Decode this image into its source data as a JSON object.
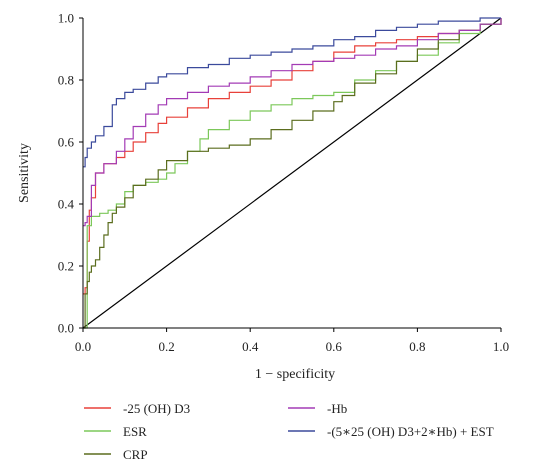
{
  "chart_data": {
    "type": "line",
    "xlabel": "1 − specificity",
    "ylabel": "Sensitivity",
    "xlim": [
      0.0,
      1.0
    ],
    "ylim": [
      0.0,
      1.0
    ],
    "x_ticks": [
      "0.0",
      "0.2",
      "0.4",
      "0.6",
      "0.8",
      "1.0"
    ],
    "y_ticks": [
      "0.0",
      "0.2",
      "0.4",
      "0.6",
      "0.8",
      "1.0"
    ],
    "grid": false,
    "legend_position": "bottom",
    "reference_line": {
      "x": [
        0,
        1
      ],
      "y": [
        0,
        1
      ],
      "color": "#000000"
    },
    "series": [
      {
        "name": "-25 (OH) D3",
        "color": "#e8413a",
        "x": [
          0,
          0.005,
          0.01,
          0.015,
          0.02,
          0.03,
          0.05,
          0.08,
          0.1,
          0.12,
          0.15,
          0.18,
          0.2,
          0.25,
          0.3,
          0.35,
          0.4,
          0.45,
          0.5,
          0.55,
          0.6,
          0.65,
          0.7,
          0.75,
          0.8,
          0.85,
          0.9,
          0.95,
          1.0
        ],
        "y": [
          0.11,
          0.13,
          0.28,
          0.38,
          0.42,
          0.5,
          0.53,
          0.55,
          0.57,
          0.6,
          0.63,
          0.66,
          0.68,
          0.71,
          0.74,
          0.76,
          0.78,
          0.8,
          0.83,
          0.86,
          0.89,
          0.91,
          0.92,
          0.93,
          0.94,
          0.95,
          0.96,
          0.98,
          1.0
        ]
      },
      {
        "name": "ESR",
        "color": "#7cc85a",
        "x": [
          0,
          0.01,
          0.02,
          0.04,
          0.06,
          0.08,
          0.1,
          0.12,
          0.15,
          0.18,
          0.2,
          0.22,
          0.25,
          0.28,
          0.3,
          0.35,
          0.4,
          0.45,
          0.5,
          0.55,
          0.6,
          0.65,
          0.7,
          0.75,
          0.8,
          0.85,
          0.9,
          0.95,
          1.0
        ],
        "y": [
          0.0,
          0.33,
          0.36,
          0.37,
          0.38,
          0.4,
          0.44,
          0.46,
          0.47,
          0.48,
          0.5,
          0.53,
          0.57,
          0.61,
          0.64,
          0.67,
          0.7,
          0.72,
          0.74,
          0.75,
          0.76,
          0.8,
          0.83,
          0.86,
          0.88,
          0.92,
          0.95,
          0.98,
          1.0
        ]
      },
      {
        "name": "CRP",
        "color": "#5b6d1e",
        "x": [
          0,
          0.005,
          0.01,
          0.015,
          0.02,
          0.03,
          0.04,
          0.05,
          0.06,
          0.07,
          0.08,
          0.1,
          0.12,
          0.15,
          0.18,
          0.2,
          0.25,
          0.3,
          0.35,
          0.4,
          0.45,
          0.5,
          0.55,
          0.6,
          0.62,
          0.65,
          0.7,
          0.75,
          0.8,
          0.85,
          0.9,
          0.95,
          1.0
        ],
        "y": [
          0.0,
          0.11,
          0.15,
          0.18,
          0.2,
          0.22,
          0.26,
          0.3,
          0.34,
          0.37,
          0.39,
          0.42,
          0.46,
          0.48,
          0.51,
          0.54,
          0.57,
          0.58,
          0.59,
          0.61,
          0.64,
          0.67,
          0.7,
          0.73,
          0.75,
          0.79,
          0.82,
          0.86,
          0.9,
          0.93,
          0.96,
          0.98,
          1.0
        ]
      },
      {
        "name": "-Hb",
        "color": "#a33bb5",
        "x": [
          0,
          0.005,
          0.01,
          0.02,
          0.03,
          0.05,
          0.08,
          0.1,
          0.12,
          0.15,
          0.18,
          0.2,
          0.25,
          0.3,
          0.35,
          0.4,
          0.45,
          0.5,
          0.55,
          0.6,
          0.65,
          0.7,
          0.75,
          0.8,
          0.85,
          0.9,
          0.95,
          1.0
        ],
        "y": [
          0.33,
          0.34,
          0.36,
          0.46,
          0.5,
          0.53,
          0.57,
          0.61,
          0.65,
          0.69,
          0.72,
          0.74,
          0.76,
          0.78,
          0.79,
          0.81,
          0.83,
          0.85,
          0.86,
          0.87,
          0.88,
          0.9,
          0.91,
          0.93,
          0.95,
          0.96,
          0.98,
          1.0
        ]
      },
      {
        "name": "-(5∗25 (OH) D3+2∗Hb) + EST",
        "color": "#3b4a9c",
        "x": [
          0,
          0.005,
          0.01,
          0.02,
          0.03,
          0.05,
          0.07,
          0.08,
          0.1,
          0.12,
          0.15,
          0.18,
          0.2,
          0.25,
          0.3,
          0.35,
          0.4,
          0.45,
          0.5,
          0.55,
          0.6,
          0.65,
          0.7,
          0.75,
          0.8,
          0.85,
          0.9,
          0.95,
          1.0
        ],
        "y": [
          0.52,
          0.55,
          0.58,
          0.6,
          0.62,
          0.65,
          0.72,
          0.74,
          0.76,
          0.77,
          0.79,
          0.81,
          0.82,
          0.84,
          0.85,
          0.87,
          0.88,
          0.89,
          0.9,
          0.91,
          0.93,
          0.94,
          0.96,
          0.97,
          0.98,
          0.99,
          0.99,
          1.0,
          1.0
        ]
      }
    ]
  }
}
